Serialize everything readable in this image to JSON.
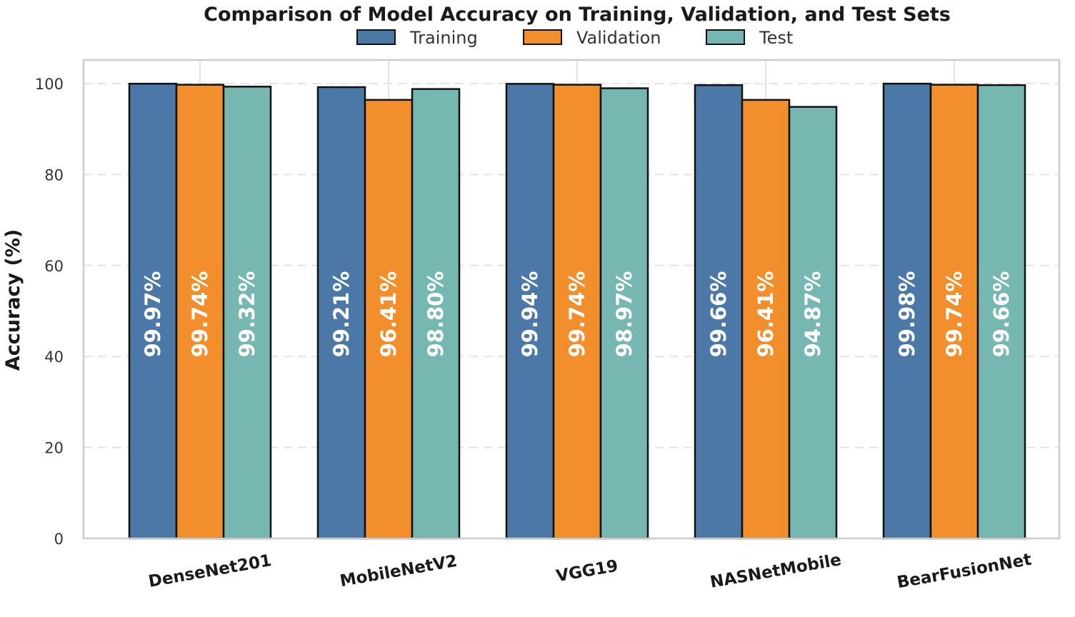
{
  "chart_data": {
    "type": "bar",
    "title": "Comparison of Model Accuracy on Training, Validation, and Test Sets",
    "xlabel": "",
    "ylabel": "Accuracy (%)",
    "ylim": [
      0,
      100
    ],
    "yticks": [
      0,
      20,
      40,
      60,
      80,
      100
    ],
    "grid": true,
    "legend_position": "top-center",
    "categories": [
      "DenseNet201",
      "MobileNetV2",
      "VGG19",
      "NASNetMobile",
      "BearFusionNet"
    ],
    "series": [
      {
        "name": "Training",
        "color": "#4c78a8",
        "values": [
          99.97,
          99.21,
          99.94,
          99.66,
          99.98
        ],
        "labels": [
          "99.97%",
          "99.21%",
          "99.94%",
          "99.66%",
          "99.98%"
        ]
      },
      {
        "name": "Validation",
        "color": "#f28e2b",
        "values": [
          99.74,
          96.41,
          99.74,
          96.41,
          99.74
        ],
        "labels": [
          "99.74%",
          "96.41%",
          "99.74%",
          "96.41%",
          "99.74%"
        ]
      },
      {
        "name": "Test",
        "color": "#76b7b2",
        "values": [
          99.32,
          98.8,
          98.97,
          94.87,
          99.66
        ],
        "labels": [
          "99.32%",
          "98.80%",
          "98.97%",
          "94.87%",
          "99.66%"
        ]
      }
    ]
  }
}
